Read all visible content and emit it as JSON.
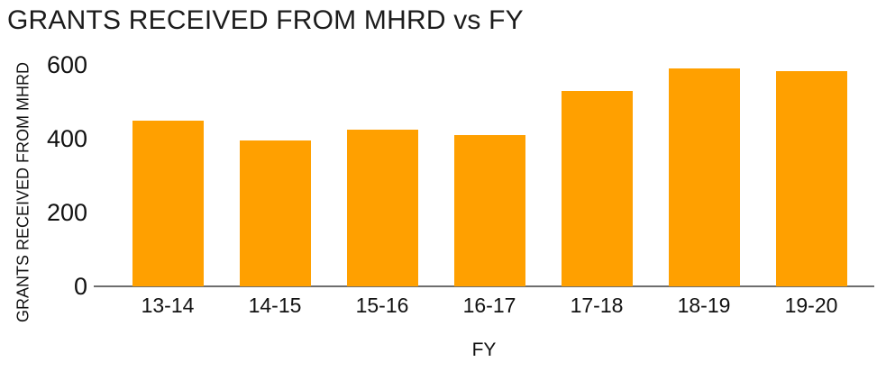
{
  "chart_data": {
    "type": "bar",
    "title": "GRANTS RECEIVED FROM MHRD vs FY",
    "xlabel": "FY",
    "ylabel": "GRANTS RECEIVED FROM MHRD",
    "categories": [
      "13-14",
      "14-15",
      "15-16",
      "16-17",
      "17-18",
      "18-19",
      "19-20"
    ],
    "values": [
      450,
      395,
      425,
      410,
      530,
      590,
      582
    ],
    "ylim": [
      0,
      600
    ],
    "yticks": [
      0,
      200,
      400,
      600
    ],
    "grid": false,
    "legend": false,
    "colors": {
      "bar": "#FFA000",
      "axis": "#6E6E6E",
      "text": "#1C1C1C"
    }
  }
}
